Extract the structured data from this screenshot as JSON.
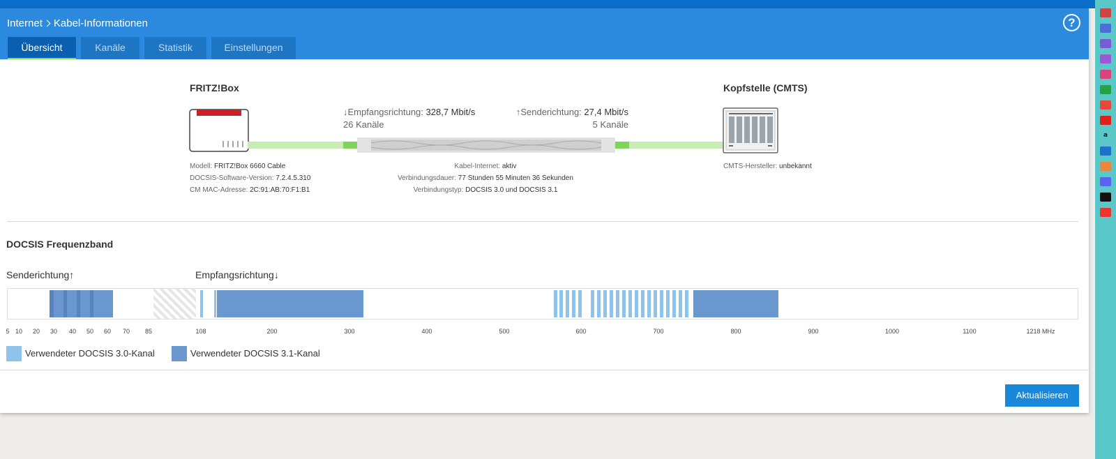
{
  "breadcrumb": {
    "parent": "Internet",
    "current": "Kabel-Informationen"
  },
  "help_label": "?",
  "tabs": [
    "Übersicht",
    "Kanäle",
    "Statistik",
    "Einstellungen"
  ],
  "device": {
    "title": "FRITZ!Box",
    "info": [
      {
        "label": "Modell: ",
        "value": "FRITZ!Box 6660 Cable"
      },
      {
        "label": "DOCSIS-Software-Version: ",
        "value": "7.2.4.5.310"
      },
      {
        "label": "CM MAC-Adresse: ",
        "value": "2C:91:AB:70:F1:B1"
      }
    ]
  },
  "downstream": {
    "label": "↓Empfangsrichtung: ",
    "rate": "328,7 Mbit/s",
    "channels": "26 Kanäle"
  },
  "upstream": {
    "label": "↑Senderichtung: ",
    "rate": "27,4 Mbit/s",
    "channels": "5 Kanäle"
  },
  "connection": [
    {
      "label": "Kabel-Internet: ",
      "value": "aktiv"
    },
    {
      "label": "Verbindungsdauer: ",
      "value": "77 Stunden 55 Minuten 36 Sekunden"
    },
    {
      "label": "Verbindungstyp: ",
      "value": "DOCSIS 3.0 und DOCSIS 3.1"
    }
  ],
  "cmts": {
    "title": "Kopfstelle (CMTS)",
    "manufacturer_label": "CMTS-Hersteller: ",
    "manufacturer_value": "unbekannt"
  },
  "frequency": {
    "title": "DOCSIS Frequenzband",
    "upstream_label": "Senderichtung↑",
    "downstream_label": "Empfangsrichtung↓",
    "upstream_ticks": [
      "5",
      "10",
      "20",
      "30",
      "40",
      "50",
      "60",
      "70",
      "85"
    ],
    "downstream_ticks": [
      "108",
      "200",
      "300",
      "400",
      "500",
      "600",
      "700",
      "800",
      "900",
      "1000",
      "1100",
      "1218 MHz"
    ],
    "legend": [
      "Verwendeter DOCSIS 3.0-Kanal",
      "Verwendeter DOCSIS 3.1-Kanal"
    ]
  },
  "colors": {
    "docsis30": "#8fc3ea",
    "docsis31": "#6b97cf",
    "accent": "#2b8ade"
  },
  "refresh_label": "Aktualisieren"
}
